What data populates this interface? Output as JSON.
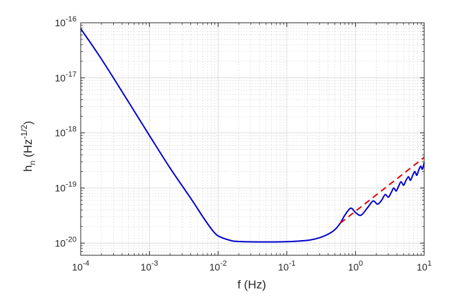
{
  "chart_data": {
    "type": "line",
    "scale": {
      "x": "log",
      "y": "log"
    },
    "xlim": [
      0.0001,
      10
    ],
    "ylim": [
      6e-21,
      1e-16
    ],
    "xlabel": "f (Hz)",
    "ylabel": {
      "main": "h",
      "sub": "n",
      "unit_open": " (Hz",
      "unit_exp": "-1/2",
      "unit_close": ")"
    },
    "x_ticks": [
      {
        "base": "10",
        "exp": "-4"
      },
      {
        "base": "10",
        "exp": "-3"
      },
      {
        "base": "10",
        "exp": "-2"
      },
      {
        "base": "10",
        "exp": "-1"
      },
      {
        "base": "10",
        "exp": "0"
      },
      {
        "base": "10",
        "exp": "1"
      }
    ],
    "y_ticks": [
      {
        "base": "10",
        "exp": "-20"
      },
      {
        "base": "10",
        "exp": "-19"
      },
      {
        "base": "10",
        "exp": "-18"
      },
      {
        "base": "10",
        "exp": "-17"
      },
      {
        "base": "10",
        "exp": "-16"
      }
    ],
    "grid": true,
    "legend": "none",
    "series": [
      {
        "style": "solid",
        "color": "#0000cc",
        "points": [
          [
            0.0001,
            7.8e-17
          ],
          [
            0.0002,
            2.2e-17
          ],
          [
            0.0005,
            3.6e-18
          ],
          [
            0.001,
            9e-19
          ],
          [
            0.002,
            2.3e-19
          ],
          [
            0.004,
            6.5e-20
          ],
          [
            0.006,
            3e-20
          ],
          [
            0.008,
            1.8e-20
          ],
          [
            0.01,
            1.35e-20
          ],
          [
            0.015,
            1.12e-20
          ],
          [
            0.02,
            1.07e-20
          ],
          [
            0.05,
            1.05e-20
          ],
          [
            0.1,
            1.06e-20
          ],
          [
            0.2,
            1.12e-20
          ],
          [
            0.3,
            1.25e-20
          ],
          [
            0.4,
            1.45e-20
          ],
          [
            0.5,
            1.75e-20
          ],
          [
            0.6,
            2.3e-20
          ],
          [
            0.7,
            3.2e-20
          ],
          [
            0.85,
            4.3e-20
          ],
          [
            1.0,
            3.6e-20
          ],
          [
            1.2,
            3.2e-20
          ],
          [
            1.5,
            4.4e-20
          ],
          [
            1.8,
            5.8e-20
          ],
          [
            2.1,
            5.1e-20
          ],
          [
            2.4,
            6e-20
          ],
          [
            2.7,
            7.6e-20
          ],
          [
            3.0,
            6.8e-20
          ],
          [
            3.3,
            8.2e-20
          ],
          [
            3.6,
            1e-19
          ],
          [
            3.9,
            8.8e-20
          ],
          [
            4.2,
            1.05e-19
          ],
          [
            4.6,
            1.3e-19
          ],
          [
            5.0,
            1.12e-19
          ],
          [
            5.4,
            1.35e-19
          ],
          [
            5.9,
            1.6e-19
          ],
          [
            6.3,
            1.38e-19
          ],
          [
            6.8,
            1.7e-19
          ],
          [
            7.3,
            2e-19
          ],
          [
            7.8,
            1.7e-19
          ],
          [
            8.3,
            2.1e-19
          ],
          [
            8.9,
            2.5e-19
          ],
          [
            9.4,
            2.2e-19
          ],
          [
            10.0,
            2.9e-19
          ]
        ]
      },
      {
        "style": "dashed",
        "color": "#e00000",
        "points": [
          [
            0.6,
            2.3e-20
          ],
          [
            10.0,
            3.6e-19
          ]
        ]
      }
    ]
  }
}
